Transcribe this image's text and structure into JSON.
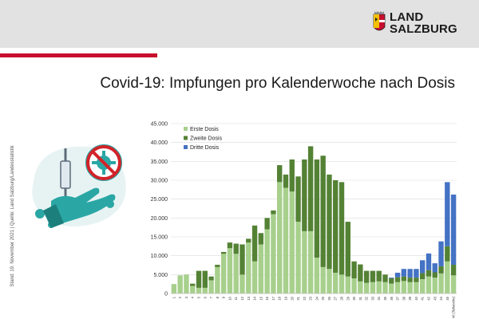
{
  "header": {
    "brand_line1": "LAND",
    "brand_line2": "SALZBURG"
  },
  "title": "Covid-19: Impfungen pro Kalenderwoche nach Dosis",
  "side_note": "Stand: 19. November 2021 | Quelle: Land Salzburg/Landesstatistik",
  "illustration": {
    "icon": "vaccine-hand-virus-icon",
    "colors": {
      "teal": "#2aa7a4",
      "red": "#d2232a"
    }
  },
  "chart_data": {
    "type": "bar",
    "stacked": true,
    "categories": [
      "1",
      "2",
      "3",
      "4",
      "5",
      "6",
      "7",
      "8",
      "9",
      "10",
      "11",
      "12",
      "13",
      "14",
      "15",
      "16",
      "17",
      "18",
      "19",
      "20",
      "21",
      "22",
      "23",
      "24",
      "25",
      "26",
      "27",
      "28",
      "29",
      "30",
      "31",
      "32",
      "33",
      "34",
      "35",
      "36",
      "37",
      "38",
      "39",
      "40",
      "41",
      "42",
      "43",
      "44",
      "45",
      "46"
    ],
    "category_labels": [
      "1",
      "2",
      "3",
      "4",
      "5",
      "6",
      "7",
      "8",
      "9",
      "10",
      "11",
      "12",
      "13",
      "14",
      "15",
      "16",
      "17",
      "18",
      "19",
      "20",
      "21",
      "22",
      "23",
      "24",
      "25",
      "26",
      "27",
      "28",
      "29",
      "30",
      "31",
      "32",
      "33",
      "34",
      "35",
      "36",
      "37",
      "38",
      "39",
      "40",
      "41",
      "42",
      "43",
      "44",
      "45",
      "46 (Teilwoche)"
    ],
    "series": [
      {
        "name": "Erste Dosis",
        "color": "#a7d08c",
        "values": [
          2500,
          4800,
          5000,
          2000,
          1500,
          1500,
          3500,
          7000,
          10500,
          12000,
          10500,
          5000,
          13500,
          8500,
          13000,
          17000,
          21000,
          29500,
          28000,
          27000,
          19000,
          16500,
          16500,
          9500,
          7000,
          6500,
          5500,
          5000,
          4500,
          4000,
          3200,
          2800,
          3000,
          3200,
          3000,
          2600,
          3000,
          3300,
          3000,
          3000,
          3800,
          4500,
          4200,
          5300,
          8500,
          4800
        ]
      },
      {
        "name": "Zweite Dosis",
        "color": "#548235",
        "values": [
          0,
          0,
          0,
          600,
          4500,
          4500,
          1000,
          600,
          500,
          1500,
          2700,
          8000,
          1000,
          9500,
          3000,
          3000,
          1000,
          4500,
          3500,
          8500,
          12000,
          19000,
          22500,
          26000,
          29500,
          25000,
          24500,
          24500,
          14500,
          4500,
          4500,
          3200,
          3000,
          2800,
          2000,
          1400,
          1300,
          1200,
          1200,
          1200,
          1600,
          1700,
          1400,
          1900,
          4000,
          2800
        ]
      },
      {
        "name": "Dritte Dosis",
        "color": "#4472c4",
        "values": [
          0,
          0,
          0,
          0,
          0,
          0,
          0,
          0,
          0,
          0,
          0,
          0,
          0,
          0,
          0,
          0,
          0,
          0,
          0,
          0,
          0,
          0,
          0,
          0,
          0,
          0,
          0,
          0,
          0,
          0,
          0,
          0,
          0,
          0,
          0,
          200,
          1200,
          2000,
          2300,
          2300,
          3400,
          4400,
          2400,
          6600,
          17000,
          18600
        ]
      }
    ],
    "ylim": [
      0,
      45000
    ],
    "yticks": [
      "0",
      "5.000",
      "10.000",
      "15.000",
      "20.000",
      "25.000",
      "30.000",
      "35.000",
      "40.000",
      "45.000"
    ],
    "legend_position": "top-left"
  }
}
